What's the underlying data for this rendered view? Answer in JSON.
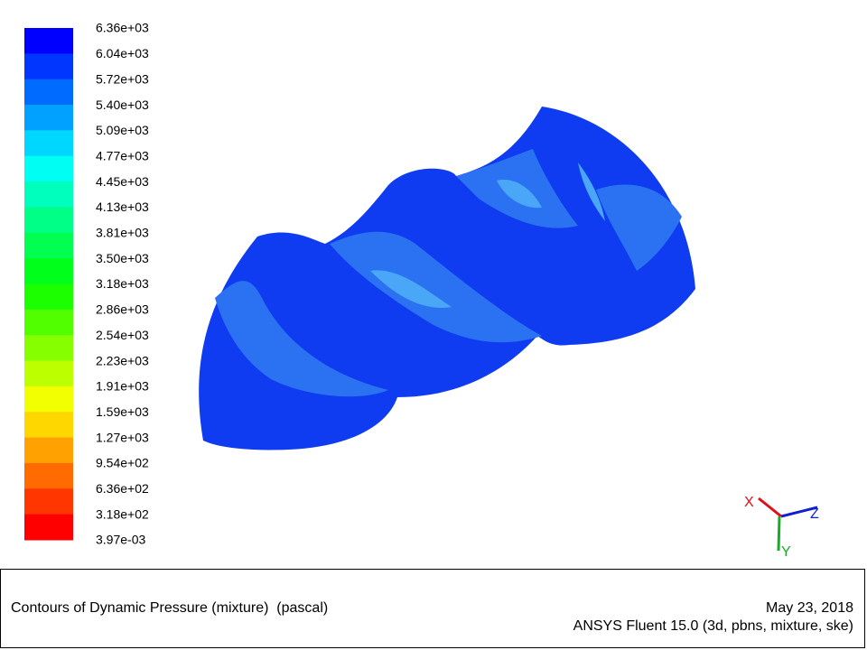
{
  "colorbar": {
    "labels": [
      "6.36e+03",
      "6.04e+03",
      "5.72e+03",
      "5.40e+03",
      "5.09e+03",
      "4.77e+03",
      "4.45e+03",
      "4.13e+03",
      "3.81e+03",
      "3.50e+03",
      "3.18e+03",
      "2.86e+03",
      "2.54e+03",
      "2.23e+03",
      "1.91e+03",
      "1.59e+03",
      "1.27e+03",
      "9.54e+02",
      "6.36e+02",
      "3.18e+02",
      "3.97e-03"
    ]
  },
  "axes": {
    "x": "X",
    "y": "Y",
    "z": "Z"
  },
  "caption": {
    "title": "Contours of Dynamic Pressure (mixture)  (pascal)",
    "date": "May 23, 2018",
    "software": "ANSYS Fluent 15.0 (3d, pbns, mixture, ske)"
  }
}
